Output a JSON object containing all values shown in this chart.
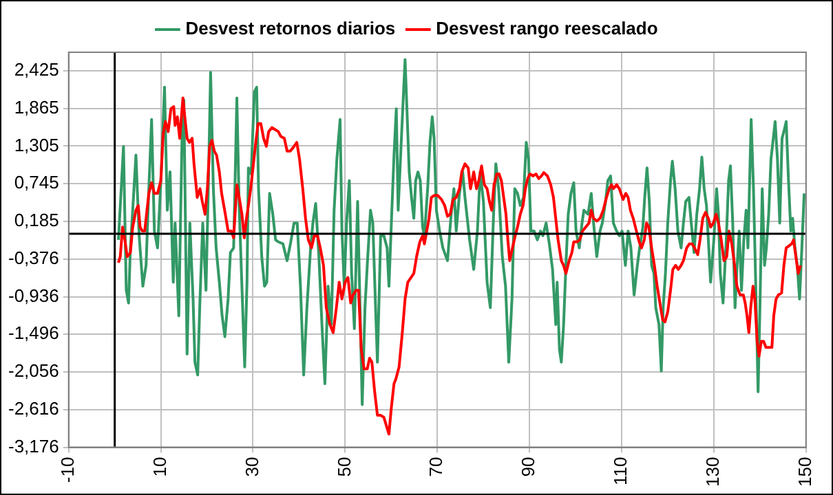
{
  "chart_data": {
    "type": "line",
    "legend": "top",
    "grid": true,
    "marker": "none",
    "line_style": "solid",
    "xlim": [
      -10,
      150
    ],
    "xticks": [
      -10,
      10,
      30,
      50,
      70,
      90,
      110,
      130,
      150
    ],
    "ylim": [
      -3.176,
      2.7
    ],
    "yticks": [
      {
        "value": -3.176,
        "label": "-3,176"
      },
      {
        "value": -2.616,
        "label": "-2,616"
      },
      {
        "value": -2.056,
        "label": "-2,056"
      },
      {
        "value": -1.496,
        "label": "-1,496"
      },
      {
        "value": -0.936,
        "label": "-0,936"
      },
      {
        "value": -0.376,
        "label": "-0,376"
      },
      {
        "value": 0.185,
        "label": "0,185"
      },
      {
        "value": 0.745,
        "label": "0,745"
      },
      {
        "value": 1.305,
        "label": "1,305"
      },
      {
        "value": 1.865,
        "label": "1,865"
      },
      {
        "value": 2.425,
        "label": "2,425"
      }
    ],
    "series": [
      {
        "name": "Desvest retornos diarios",
        "color": "#339966",
        "x": [
          0.8,
          1.5,
          1.9,
          2.5,
          3.0,
          3.4,
          3.9,
          4.6,
          5.3,
          6.1,
          6.8,
          7.4,
          8.0,
          8.6,
          9.3,
          10.1,
          10.8,
          11.4,
          12.0,
          12.7,
          13.1,
          13.9,
          14.6,
          15.0,
          15.7,
          16.3,
          17.0,
          17.4,
          18.0,
          18.5,
          19.1,
          19.8,
          20.3,
          20.8,
          21.4,
          22.0,
          22.7,
          23.3,
          23.9,
          24.6,
          25.1,
          25.8,
          26.5,
          27.0,
          27.5,
          28.2,
          28.7,
          29.0,
          29.6,
          30.3,
          30.8,
          31.2,
          31.9,
          32.5,
          33.0,
          33.6,
          34.3,
          34.9,
          35.5,
          36.5,
          37.4,
          38.2,
          38.9,
          39.6,
          40.3,
          41.0,
          41.7,
          42.5,
          43.0,
          43.6,
          44.3,
          45.0,
          45.6,
          46.3,
          47.0,
          47.6,
          48.2,
          48.9,
          49.3,
          49.8,
          50.3,
          50.9,
          51.4,
          52.0,
          52.7,
          53.1,
          53.7,
          54.3,
          54.9,
          55.5,
          56.0,
          56.6,
          57.0,
          57.7,
          58.4,
          59.1,
          59.5,
          60.1,
          60.6,
          61.1,
          61.5,
          62.0,
          62.5,
          63.0,
          63.4,
          63.9,
          64.4,
          64.9,
          65.3,
          65.8,
          66.3,
          66.8,
          67.2,
          67.9,
          68.4,
          68.9,
          69.3,
          69.8,
          70.5,
          71.2,
          72.2,
          73.0,
          73.6,
          74.1,
          74.8,
          75.5,
          76.0,
          77.0,
          77.9,
          78.7,
          79.3,
          80.0,
          80.8,
          81.5,
          82.2,
          82.7,
          83.3,
          84.1,
          84.8,
          85.5,
          86.2,
          86.8,
          87.4,
          88.0,
          88.7,
          89.3,
          89.8,
          90.3,
          91.0,
          91.7,
          92.4,
          92.9,
          93.6,
          94.3,
          95.0,
          95.7,
          96.0,
          96.5,
          96.9,
          97.4,
          97.9,
          98.4,
          99.0,
          99.6,
          100.1,
          100.8,
          101.4,
          101.8,
          102.7,
          103.4,
          103.9,
          104.6,
          105.3,
          105.8,
          106.5,
          107.0,
          107.6,
          108.2,
          108.9,
          109.5,
          110.1,
          110.8,
          111.4,
          112.0,
          112.7,
          113.4,
          113.9,
          114.6,
          115.0,
          115.5,
          116.0,
          116.5,
          117.0,
          117.4,
          118.1,
          118.6,
          119.0,
          119.5,
          120.0,
          120.6,
          121.0,
          121.6,
          122.2,
          122.9,
          123.4,
          123.9,
          124.6,
          125.1,
          125.7,
          126.3,
          126.9,
          127.4,
          127.9,
          128.4,
          128.9,
          129.3,
          130.0,
          130.6,
          131.0,
          131.4,
          132.0,
          132.7,
          133.2,
          133.6,
          134.1,
          134.6,
          135.0,
          135.5,
          136.0,
          136.5,
          137.0,
          137.4,
          138.1,
          138.6,
          139.1,
          139.6,
          140.0,
          140.5,
          141.0,
          141.4,
          141.9,
          142.4,
          142.9,
          143.3,
          143.8,
          144.3,
          144.8,
          145.3,
          145.7,
          146.2,
          146.7,
          147.1,
          147.6,
          148.1,
          148.6,
          149.1,
          149.6
        ],
        "values": [
          -0.09,
          0.79,
          1.3,
          -0.84,
          -1.03,
          -0.21,
          0.35,
          1.17,
          -0.03,
          -0.78,
          -0.47,
          0.67,
          1.7,
          0.04,
          -0.21,
          0.92,
          2.18,
          0.35,
          0.92,
          -0.72,
          0.16,
          -1.22,
          1.42,
          1.99,
          -1.79,
          0.16,
          -0.97,
          -1.91,
          -2.1,
          -0.97,
          0.16,
          -0.84,
          0.67,
          2.4,
          0.67,
          -0.21,
          -0.72,
          -1.22,
          -1.53,
          -0.97,
          -0.28,
          -0.21,
          2.02,
          0.42,
          -0.59,
          -1.98,
          -0.72,
          0.98,
          0.89,
          2.11,
          2.18,
          0.67,
          -0.34,
          -0.78,
          -0.72,
          0.6,
          0.29,
          -0.09,
          -0.12,
          -0.15,
          -0.4,
          -0.12,
          0.16,
          0.16,
          -0.78,
          -2.1,
          -1.1,
          -0.21,
          0.16,
          0.45,
          -0.34,
          -1.41,
          -2.23,
          -0.78,
          -1.35,
          0.35,
          1.11,
          1.7,
          0.04,
          -0.78,
          0.16,
          0.79,
          -0.59,
          -1.41,
          0.48,
          -0.72,
          -2.54,
          -1.1,
          -0.34,
          0.35,
          0.16,
          -1.1,
          -1.91,
          -0.03,
          -0.03,
          -0.21,
          -0.78,
          0.29,
          1.17,
          1.86,
          0.35,
          1.11,
          1.86,
          2.59,
          1.86,
          0.92,
          0.54,
          0.23,
          0.79,
          0.92,
          0.79,
          0.1,
          -0.03,
          0.67,
          1.36,
          1.74,
          1.42,
          0.35,
          0.04,
          -0.21,
          -0.4,
          0.29,
          0.67,
          0.04,
          0.6,
          0.92,
          0.54,
          -0.09,
          -0.53,
          0.04,
          0.92,
          0.48,
          -0.72,
          -1.1,
          0.29,
          1.04,
          0.67,
          -0.34,
          -0.78,
          -1.91,
          -0.97,
          0.67,
          0.6,
          0.42,
          0.54,
          1.36,
          1.11,
          0.04,
          0.04,
          -0.09,
          0.04,
          -0.03,
          0.16,
          -0.15,
          -0.53,
          -1.35,
          -0.72,
          -1.72,
          -1.91,
          -1.35,
          -0.47,
          0.29,
          0.6,
          0.76,
          0.04,
          -0.21,
          0.16,
          0.35,
          0.29,
          0.6,
          0.16,
          -0.34,
          0.04,
          0.16,
          0.48,
          0.79,
          0.86,
          0.16,
          0.04,
          -0.03,
          0.04,
          -0.47,
          0.04,
          -0.21,
          -0.91,
          -0.47,
          -0.21,
          0.1,
          0.54,
          0.98,
          0.48,
          -0.47,
          -0.59,
          -1.1,
          -1.35,
          -2.04,
          -1.1,
          -0.59,
          0.16,
          0.79,
          1.08,
          0.67,
          0.04,
          -0.21,
          0.16,
          0.48,
          0.54,
          0.16,
          -0.28,
          0.29,
          0.67,
          1.14,
          0.67,
          0.42,
          -0.21,
          -0.72,
          -0.09,
          0.67,
          0.29,
          -0.59,
          -1.03,
          -0.09,
          0.79,
          1.01,
          0.16,
          -1.1,
          -0.53,
          0.04,
          -0.84,
          -0.09,
          0.35,
          -0.21,
          1.7,
          0.67,
          -0.78,
          -2.35,
          -1.1,
          0.67,
          -0.47,
          -0.21,
          0.29,
          1.11,
          1.42,
          1.67,
          1.11,
          0.16,
          1.42,
          1.55,
          1.67,
          0.79,
          0.04,
          0.23,
          -0.21,
          -0.47,
          -0.97,
          -0.21,
          0.6
        ]
      },
      {
        "name": "Desvest rango reescalado",
        "color": "#ff0000",
        "x": [
          0.8,
          1.2,
          1.7,
          2.2,
          2.7,
          3.4,
          3.9,
          4.6,
          5.1,
          5.5,
          6.0,
          6.5,
          6.9,
          7.4,
          8.0,
          8.6,
          9.3,
          10.0,
          10.5,
          11.0,
          11.6,
          12.2,
          12.8,
          13.1,
          13.6,
          14.1,
          14.8,
          15.2,
          15.7,
          16.2,
          16.8,
          17.2,
          17.9,
          18.5,
          19.0,
          19.6,
          20.1,
          20.6,
          21.1,
          21.6,
          22.1,
          22.7,
          23.2,
          24.0,
          24.6,
          25.3,
          25.8,
          26.5,
          27.0,
          27.6,
          28.1,
          28.6,
          29.0,
          29.5,
          30.0,
          30.5,
          31.1,
          31.7,
          32.3,
          32.9,
          33.4,
          34.1,
          34.8,
          35.5,
          36.0,
          36.8,
          37.4,
          38.1,
          38.9,
          39.5,
          40.1,
          40.8,
          41.4,
          42.0,
          42.7,
          43.3,
          44.0,
          44.6,
          45.3,
          45.9,
          46.7,
          47.4,
          48.1,
          48.7,
          49.3,
          50.0,
          50.6,
          51.2,
          51.7,
          52.4,
          52.9,
          53.5,
          54.1,
          54.8,
          55.3,
          55.8,
          56.4,
          57.0,
          57.7,
          58.4,
          59.1,
          59.5,
          60.0,
          60.6,
          61.0,
          61.7,
          62.4,
          63.0,
          63.6,
          64.3,
          64.9,
          65.5,
          66.2,
          66.8,
          67.2,
          67.7,
          68.2,
          68.7,
          69.3,
          70.1,
          70.9,
          71.6,
          72.2,
          72.8,
          73.4,
          74.1,
          74.8,
          75.3,
          76.0,
          76.7,
          77.2,
          77.9,
          78.5,
          79.0,
          79.6,
          80.2,
          80.8,
          81.3,
          81.8,
          82.3,
          82.9,
          83.4,
          83.9,
          84.4,
          84.9,
          85.3,
          85.7,
          86.3,
          86.9,
          87.4,
          88.0,
          88.6,
          89.1,
          89.6,
          90.1,
          90.8,
          91.4,
          92.0,
          92.6,
          93.1,
          93.9,
          94.6,
          95.2,
          95.8,
          96.2,
          96.9,
          97.4,
          97.9,
          98.6,
          99.2,
          99.6,
          100.3,
          100.9,
          101.5,
          102.2,
          102.9,
          103.4,
          103.9,
          104.6,
          105.3,
          106.0,
          106.7,
          107.3,
          107.8,
          108.2,
          108.9,
          109.5,
          110.3,
          110.9,
          111.4,
          111.9,
          112.5,
          113.2,
          113.8,
          114.3,
          114.9,
          115.4,
          115.9,
          116.5,
          117.1,
          117.7,
          118.3,
          118.9,
          119.4,
          120.0,
          120.6,
          121.1,
          121.7,
          122.3,
          122.9,
          123.4,
          124.1,
          124.7,
          125.3,
          125.8,
          126.5,
          127.0,
          127.6,
          128.2,
          128.8,
          129.3,
          129.9,
          130.5,
          131.0,
          131.6,
          132.2,
          132.8,
          133.3,
          133.9,
          134.5,
          135.0,
          135.7,
          136.4,
          136.8,
          137.2,
          137.6,
          138.0,
          138.5,
          138.9,
          139.4,
          139.8,
          140.3,
          140.8,
          141.3,
          141.9,
          142.6,
          143.0,
          143.5,
          144.0,
          144.7,
          145.2,
          145.7,
          146.3,
          146.9,
          147.3,
          147.8,
          148.3,
          148.8
        ],
        "values": [
          -0.43,
          -0.34,
          0.1,
          -0.09,
          -0.34,
          -0.28,
          0.1,
          0.35,
          0.42,
          0.1,
          0.04,
          0.04,
          0.29,
          0.6,
          0.76,
          0.6,
          0.6,
          0.79,
          1.48,
          1.67,
          1.52,
          1.86,
          1.89,
          1.61,
          1.74,
          1.42,
          2.02,
          1.74,
          1.42,
          1.36,
          1.42,
          1.04,
          0.54,
          0.67,
          0.48,
          0.29,
          0.67,
          1.3,
          1.39,
          1.23,
          1.17,
          0.92,
          0.6,
          0.29,
          0.04,
          0.04,
          -0.06,
          0.73,
          0.54,
          0.29,
          -0.06,
          0.23,
          0.42,
          0.67,
          0.98,
          1.3,
          1.64,
          1.64,
          1.42,
          1.3,
          1.52,
          1.58,
          1.55,
          1.52,
          1.45,
          1.42,
          1.23,
          1.23,
          1.3,
          1.36,
          1.11,
          0.67,
          0.23,
          -0.09,
          -0.21,
          -0.03,
          -0.03,
          -0.21,
          -0.47,
          -1.1,
          -1.35,
          -1.47,
          -1.1,
          -0.72,
          -0.97,
          -0.72,
          -0.65,
          -1.03,
          -0.91,
          -0.84,
          -0.84,
          -1.72,
          -2.01,
          -2.01,
          -1.85,
          -1.91,
          -2.35,
          -2.7,
          -2.7,
          -2.73,
          -2.89,
          -2.98,
          -2.6,
          -2.23,
          -2.16,
          -1.98,
          -1.47,
          -0.97,
          -0.72,
          -0.65,
          -0.59,
          -0.34,
          -0.12,
          -0.03,
          -0.15,
          0.04,
          0.23,
          0.54,
          0.57,
          0.57,
          0.51,
          0.42,
          0.26,
          0.29,
          0.51,
          0.54,
          0.67,
          0.92,
          1.04,
          0.98,
          0.67,
          0.92,
          0.67,
          0.79,
          1.01,
          0.73,
          0.67,
          0.48,
          0.35,
          0.73,
          0.89,
          0.89,
          0.79,
          0.54,
          0.29,
          -0.09,
          -0.4,
          -0.21,
          -0.03,
          0.1,
          0.29,
          0.42,
          0.67,
          0.82,
          0.89,
          0.86,
          0.89,
          0.82,
          0.86,
          0.91,
          0.86,
          0.73,
          0.54,
          0.16,
          -0.09,
          -0.4,
          -0.47,
          -0.59,
          -0.4,
          -0.28,
          -0.12,
          -0.12,
          -0.09,
          0.04,
          0.1,
          0.16,
          0.35,
          0.23,
          0.19,
          0.23,
          0.35,
          0.54,
          0.67,
          0.73,
          0.67,
          0.73,
          0.67,
          0.51,
          0.6,
          0.54,
          0.35,
          0.23,
          0.04,
          -0.12,
          -0.21,
          -0.09,
          0.16,
          0.1,
          -0.21,
          -0.47,
          -0.78,
          -1.03,
          -1.28,
          -1.31,
          -1.16,
          -0.84,
          -0.53,
          -0.47,
          -0.53,
          -0.47,
          -0.4,
          -0.21,
          -0.15,
          -0.15,
          -0.21,
          -0.31,
          -0.09,
          0.23,
          0.32,
          0.23,
          0.1,
          0.16,
          0.29,
          0.16,
          -0.09,
          -0.4,
          -0.34,
          0.04,
          -0.15,
          -0.47,
          -0.78,
          -0.91,
          -0.91,
          -1.03,
          -1.22,
          -1.47,
          -1.1,
          -0.78,
          -0.97,
          -1.6,
          -1.82,
          -1.6,
          -1.6,
          -1.69,
          -1.69,
          -1.69,
          -1.22,
          -0.97,
          -0.91,
          -0.88,
          -0.47,
          -0.21,
          -0.18,
          -0.15,
          -0.09,
          -0.34,
          -0.59,
          -0.47
        ]
      }
    ]
  }
}
